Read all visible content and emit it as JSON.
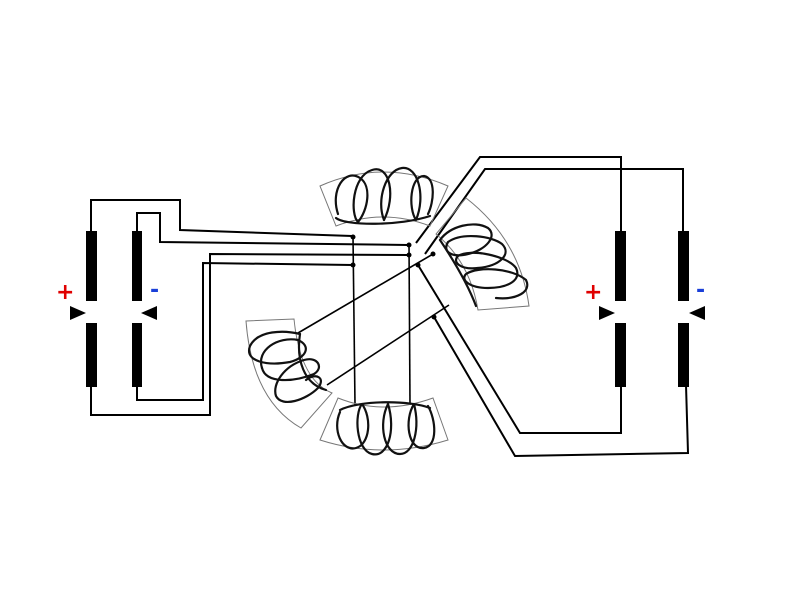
{
  "diagram": {
    "colors": {
      "plus": "#e00000",
      "minus": "#1a3fd8",
      "wire": "#000000",
      "core_outline": "#777777"
    },
    "left_source": {
      "plus_label": "+",
      "minus_label": "-"
    },
    "right_source": {
      "plus_label": "+",
      "minus_label": "-"
    }
  }
}
